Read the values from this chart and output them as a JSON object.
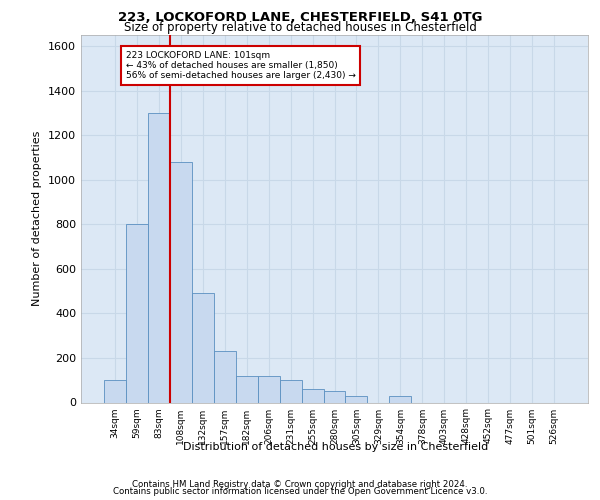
{
  "title1": "223, LOCKOFORD LANE, CHESTERFIELD, S41 0TG",
  "title2": "Size of property relative to detached houses in Chesterfield",
  "xlabel": "Distribution of detached houses by size in Chesterfield",
  "ylabel": "Number of detached properties",
  "footer1": "Contains HM Land Registry data © Crown copyright and database right 2024.",
  "footer2": "Contains public sector information licensed under the Open Government Licence v3.0.",
  "annotation_line1": "223 LOCKOFORD LANE: 101sqm",
  "annotation_line2": "← 43% of detached houses are smaller (1,850)",
  "annotation_line3": "56% of semi-detached houses are larger (2,430) →",
  "bar_categories": [
    "34sqm",
    "59sqm",
    "83sqm",
    "108sqm",
    "132sqm",
    "157sqm",
    "182sqm",
    "206sqm",
    "231sqm",
    "255sqm",
    "280sqm",
    "305sqm",
    "329sqm",
    "354sqm",
    "378sqm",
    "403sqm",
    "428sqm",
    "452sqm",
    "477sqm",
    "501sqm",
    "526sqm"
  ],
  "bar_values": [
    100,
    800,
    1300,
    1080,
    490,
    230,
    120,
    120,
    100,
    60,
    50,
    30,
    0,
    30,
    0,
    0,
    0,
    0,
    0,
    0,
    0
  ],
  "bar_color": "#c8d9ef",
  "bar_edge_color": "#5a8fc0",
  "vline_color": "#cc0000",
  "annotation_box_color": "#cc0000",
  "grid_color": "#c8d8e8",
  "background_color": "#dce8f5",
  "ylim": [
    0,
    1650
  ],
  "yticks": [
    0,
    200,
    400,
    600,
    800,
    1000,
    1200,
    1400,
    1600
  ]
}
